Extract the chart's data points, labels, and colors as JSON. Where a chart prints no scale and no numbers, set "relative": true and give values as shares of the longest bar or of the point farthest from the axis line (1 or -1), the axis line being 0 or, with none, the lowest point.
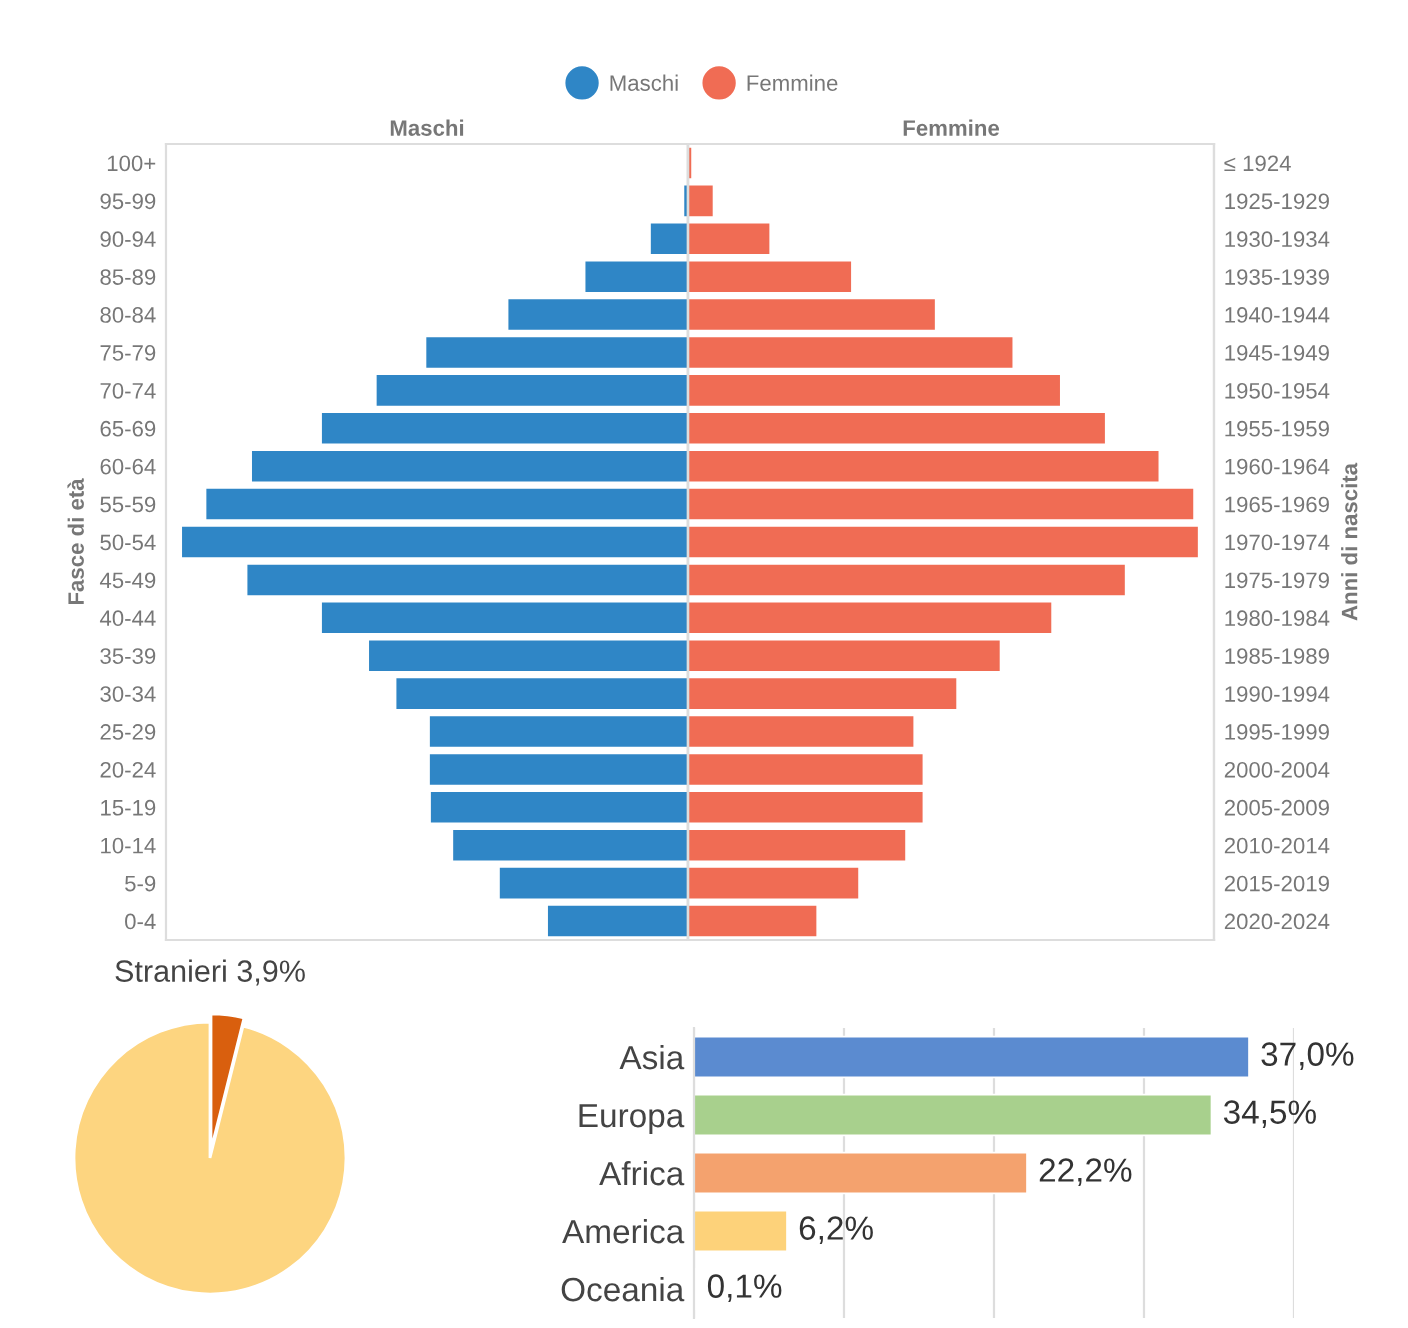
{
  "chart_data": [
    {
      "type": "bar",
      "orientation": "horizontal",
      "relative": true,
      "legend": "top",
      "title": "Maschi",
      "ylabel": "Fasce di età",
      "categories": [
        "100+",
        "95-99",
        "90-94",
        "85-89",
        "80-84",
        "75-79",
        "70-74",
        "65-69",
        "60-64",
        "55-59",
        "50-54",
        "45-49",
        "40-44",
        "35-39",
        "30-34",
        "25-29",
        "20-24",
        "15-19",
        "10-14",
        "5-9",
        "0-4"
      ],
      "series": [
        {
          "name": "Maschi",
          "color": "#2f86c6",
          "values": [
            null,
            -0.009,
            -0.075,
            -0.204,
            -0.356,
            -0.518,
            -0.616,
            -0.724,
            -0.862,
            -0.952,
            -1,
            -0.871,
            -0.724,
            -0.631,
            -0.577,
            -0.511,
            -0.511,
            -0.509,
            -0.465,
            -0.373,
            -0.278
          ]
        }
      ]
    },
    {
      "type": "bar",
      "orientation": "horizontal",
      "relative": true,
      "legend": "top",
      "title": "Femmine",
      "y2label": "Anni di nascita",
      "tick_labels": false,
      "categories": [
        null,
        null,
        null,
        null,
        null,
        null,
        null,
        null,
        null,
        null,
        null,
        null,
        null,
        null,
        null,
        null,
        null,
        null,
        null,
        null,
        null
      ],
      "y2_categories": [
        "≤ 1924",
        "1925-1929",
        "1930-1934",
        "1935-1939",
        "1940-1944",
        "1945-1949",
        "1950-1954",
        "1955-1959",
        "1960-1964",
        "1965-1969",
        "1970-1974",
        "1975-1979",
        "1980-1984",
        "1985-1989",
        "1990-1994",
        "1995-1999",
        "2000-2004",
        "2005-2009",
        "2010-2014",
        "2015-2019",
        "2020-2024"
      ],
      "series": [
        {
          "name": "Femmine",
          "color": "#f06c54",
          "values": [
            0.008,
            0.05,
            0.161,
            0.321,
            0.485,
            0.637,
            0.73,
            0.818,
            0.923,
            0.991,
            1,
            0.857,
            0.713,
            0.612,
            0.527,
            0.443,
            0.461,
            0.461,
            0.427,
            0.335,
            0.253
          ]
        }
      ]
    },
    {
      "type": "pie",
      "categories": [
        "Stranieri",
        null
      ],
      "values": [
        3.9,
        96.1
      ],
      "value_labels": [
        "3,9%",
        null
      ],
      "colors": [
        "#d95f0e",
        "#fdd580"
      ]
    },
    {
      "type": "bar",
      "orientation": "horizontal",
      "categories": [
        "Asia",
        "Europa",
        "Africa",
        "America",
        "Oceania"
      ],
      "values": [
        37.0,
        34.5,
        22.2,
        6.2,
        0.1
      ],
      "value_labels": [
        "37,0%",
        "34,5%",
        "22,2%",
        "6,2%",
        "0,1%"
      ],
      "colors": [
        "#5b8bd0",
        "#a8d08d",
        "#f4a26e",
        "#fdd27a",
        "#fdd27a"
      ],
      "xlim": [
        0,
        40
      ],
      "xticks": [
        {
          "value": 0,
          "label": null
        },
        {
          "value": 10,
          "label": null
        },
        {
          "value": 20,
          "label": null
        },
        {
          "value": 30,
          "label": null
        },
        {
          "value": 40,
          "label": null
        }
      ],
      "grid": "x",
      "tick_labels": "y"
    }
  ]
}
